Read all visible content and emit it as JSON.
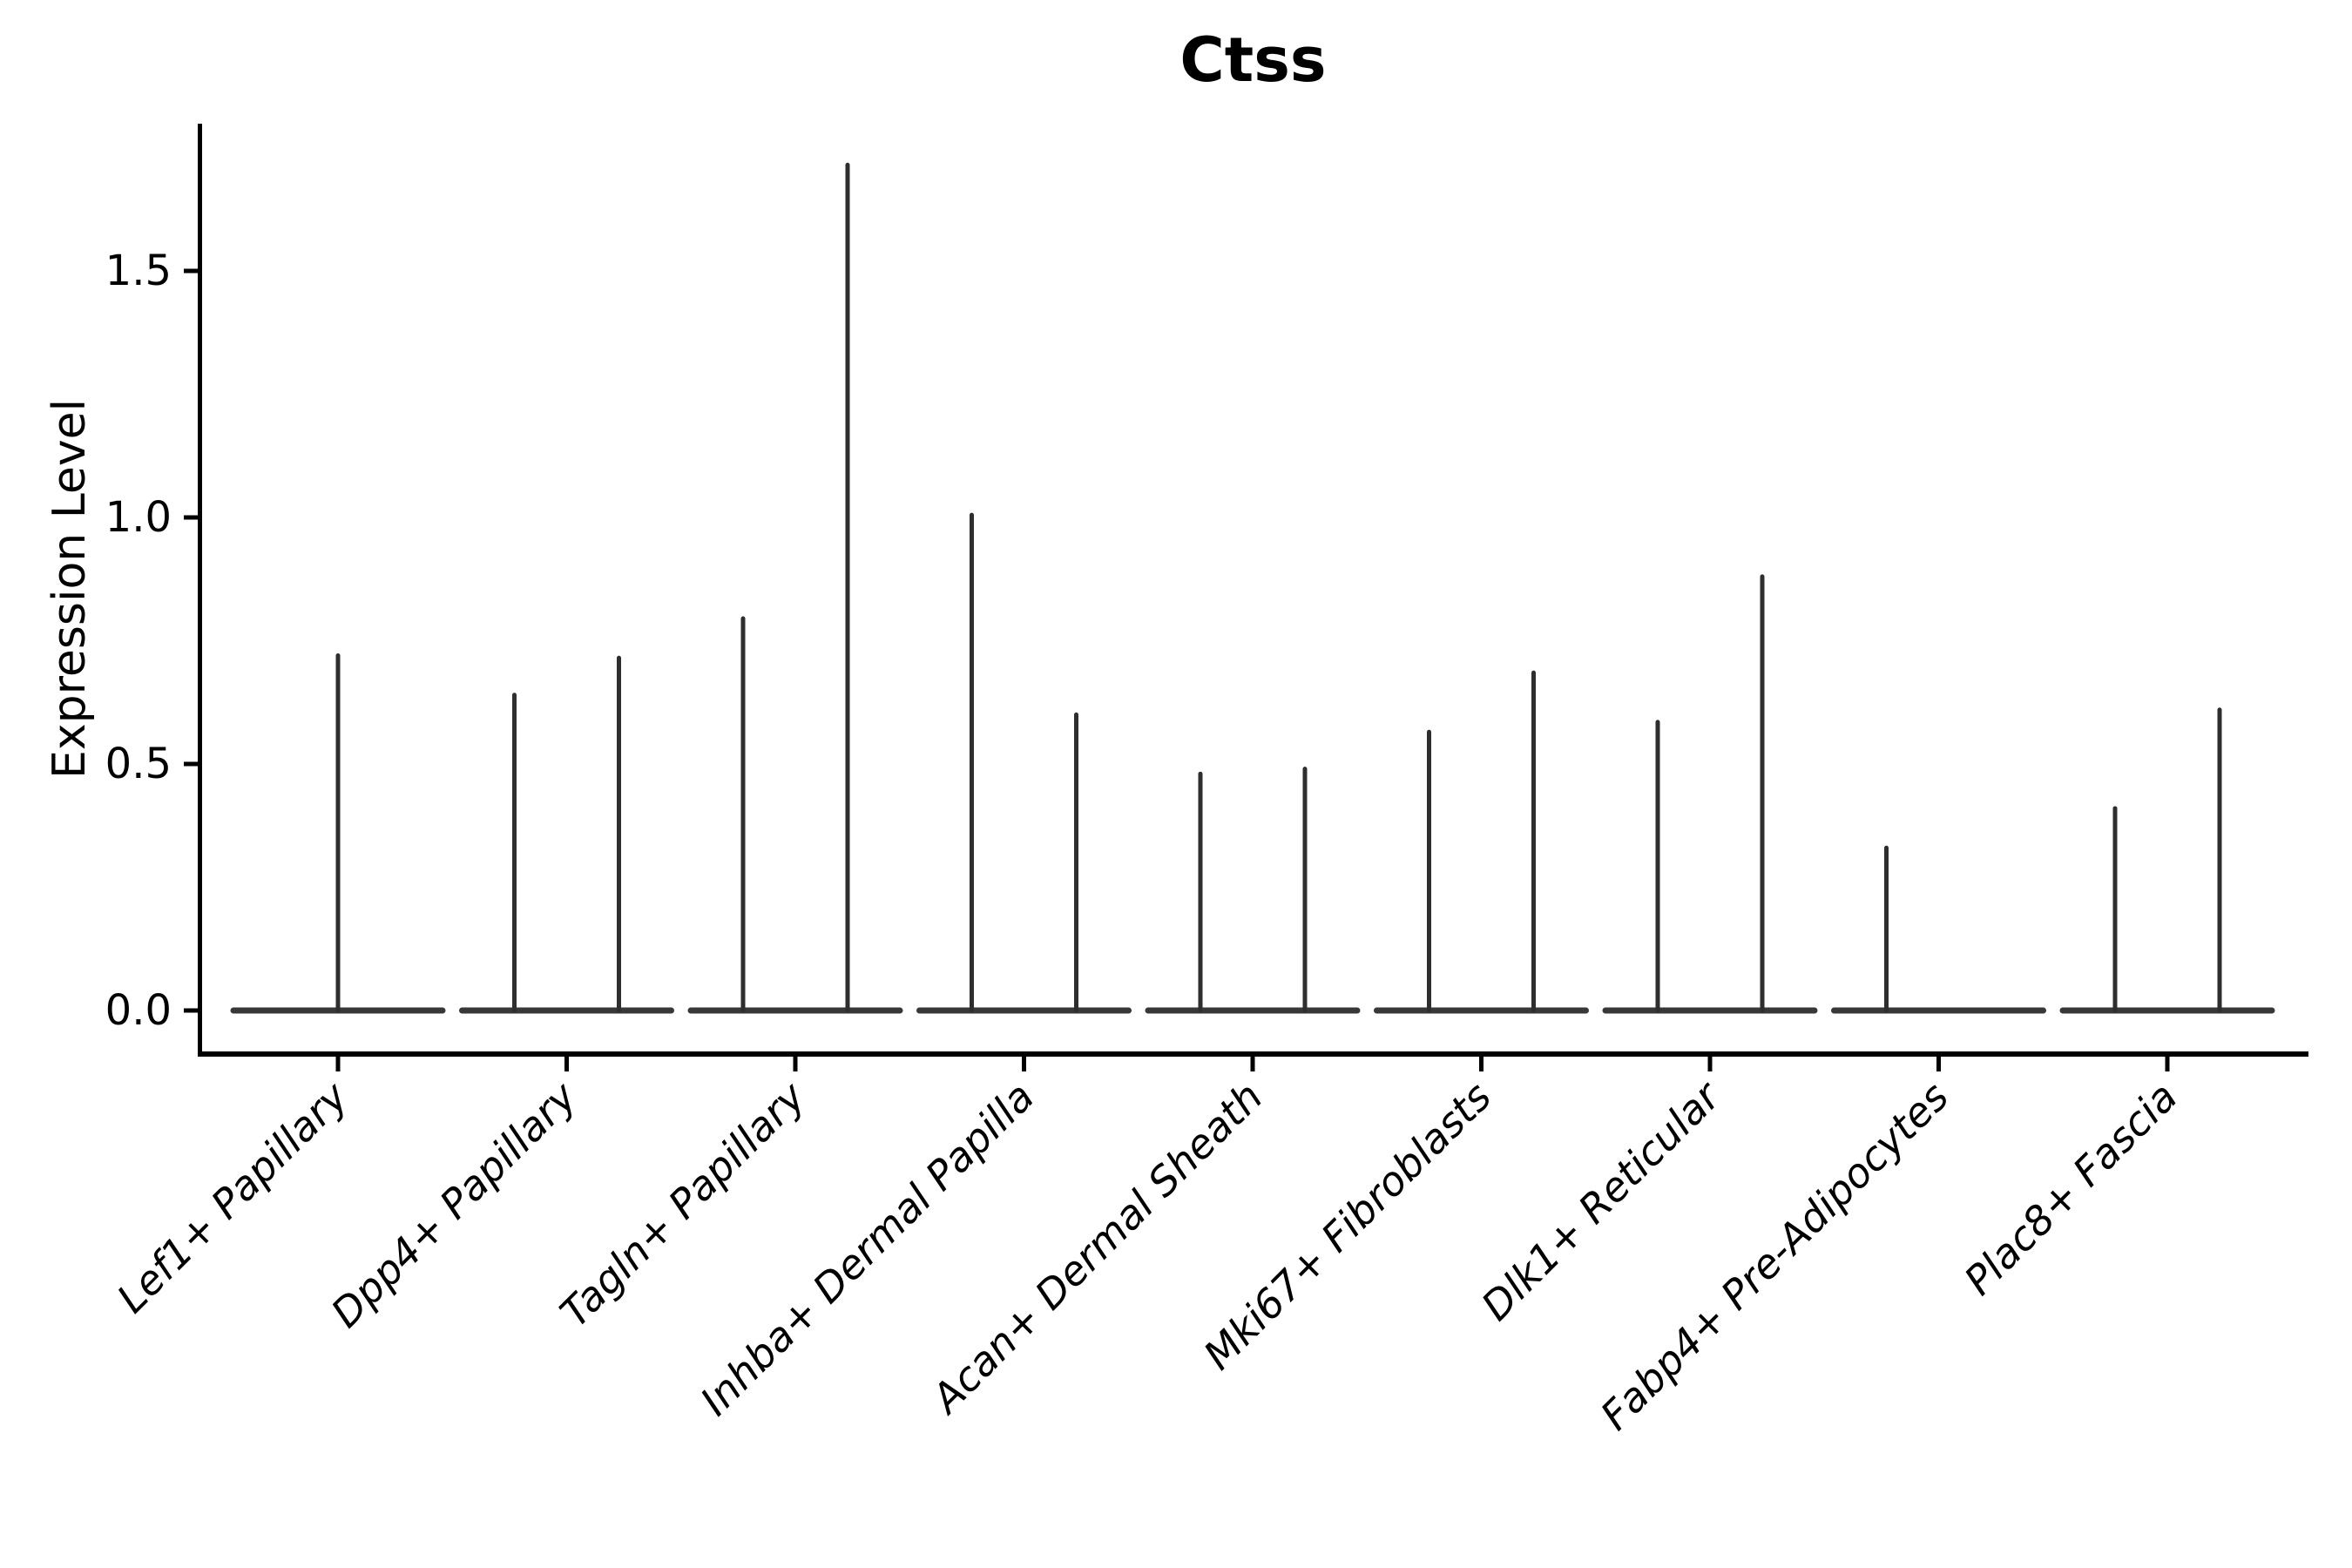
{
  "chart_data": {
    "type": "violin",
    "title": "Ctss",
    "ylabel": "Expression Level",
    "xlabel": "",
    "yticks": [
      "0.0",
      "0.5",
      "1.0",
      "1.5"
    ],
    "ytick_values": [
      0.0,
      0.5,
      1.0,
      1.5
    ],
    "ylim": [
      0,
      1.8
    ],
    "grid": false,
    "legend": "none",
    "x_tick_label_style": "italic, rotated 45 degrees, right-aligned",
    "description": "Thin spike violins over flat zero baselines; up to two dodged violins per category",
    "categories": [
      "Lef1+ Papillary",
      "Dpp4+ Papillary",
      "Tagln+ Papillary",
      "Inhba+ Dermal Papilla",
      "Acan+ Dermal Sheath",
      "Mki67+ Fibroblasts",
      "Dlk1+ Reticular",
      "Fabp4+ Pre-Adipocytes",
      "Plac8+ Fascia"
    ],
    "violins": [
      {
        "category": "Lef1+ Papillary",
        "spikes": [
          {
            "pos": "center",
            "max": 0.72
          }
        ]
      },
      {
        "category": "Dpp4+ Papillary",
        "spikes": [
          {
            "pos": "left",
            "max": 0.64
          },
          {
            "pos": "right",
            "max": 0.715
          }
        ]
      },
      {
        "category": "Tagln+ Papillary",
        "spikes": [
          {
            "pos": "left",
            "max": 0.795
          },
          {
            "pos": "right",
            "max": 1.715
          }
        ]
      },
      {
        "category": "Inhba+ Dermal Papilla",
        "spikes": [
          {
            "pos": "left",
            "max": 1.005
          },
          {
            "pos": "right",
            "max": 0.6
          }
        ]
      },
      {
        "category": "Acan+ Dermal Sheath",
        "spikes": [
          {
            "pos": "left",
            "max": 0.48
          },
          {
            "pos": "right",
            "max": 0.49
          }
        ]
      },
      {
        "category": "Mki67+ Fibroblasts",
        "spikes": [
          {
            "pos": "left",
            "max": 0.565
          },
          {
            "pos": "right",
            "max": 0.685
          }
        ]
      },
      {
        "category": "Dlk1+ Reticular",
        "spikes": [
          {
            "pos": "left",
            "max": 0.585
          },
          {
            "pos": "right",
            "max": 0.88
          }
        ]
      },
      {
        "category": "Fabp4+ Pre-Adipocytes",
        "spikes": [
          {
            "pos": "left",
            "max": 0.33
          }
        ]
      },
      {
        "category": "Plac8+ Fascia",
        "spikes": [
          {
            "pos": "left",
            "max": 0.41
          },
          {
            "pos": "right",
            "max": 0.61
          }
        ]
      }
    ],
    "colors": {
      "violin": "#2e2e2e",
      "baseline": "#383838",
      "axis": "#000000",
      "text": "#000000",
      "background": "#ffffff"
    }
  }
}
